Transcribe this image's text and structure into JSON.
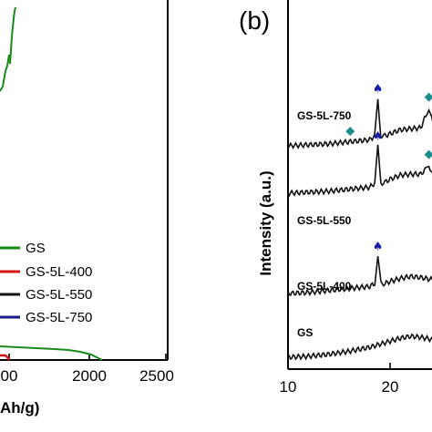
{
  "chart_data": [
    {
      "type": "line",
      "xlabel_fragment": "Ah/g)",
      "x_ticks": [
        "00",
        "2000",
        "2500"
      ],
      "x_visible_range": [
        1600,
        2500
      ],
      "legend": [
        "GS",
        "GS-5L-400",
        "GS-5L-550",
        "GS-5L-750"
      ],
      "colors": {
        "GS": "#1a8a1a",
        "GS-5L-400": "#d41414",
        "GS-5L-550": "#111111",
        "GS-5L-750": "#1a1a8c"
      },
      "series": [
        {
          "name": "GS",
          "points": [
            [
              1600,
              1.5
            ],
            [
              1750,
              1.4
            ],
            [
              1900,
              1.1
            ],
            [
              2000,
              0.7
            ],
            [
              2100,
              0.2
            ]
          ]
        },
        {
          "name": "GS-5L-400",
          "points": [
            [
              1600,
              0.12
            ],
            [
              1620,
              0.1
            ]
          ]
        }
      ]
    },
    {
      "type": "line",
      "panel_label": "(b)",
      "ylabel": "Intensity (a.u.)",
      "x_ticks": [
        "10",
        "20"
      ],
      "xlim": [
        10,
        26
      ],
      "series": [
        {
          "name": "GS",
          "offset": 0,
          "x": [
            10,
            12,
            14,
            16,
            18,
            19,
            20,
            21,
            22,
            23,
            24,
            25,
            26
          ],
          "y": [
            0.0,
            0.05,
            0.15,
            0.3,
            0.5,
            0.65,
            0.8,
            0.95,
            1.05,
            1.0,
            0.9,
            0.8,
            0.75
          ]
        },
        {
          "name": "GS-5L-400",
          "offset": 1,
          "x": [
            10,
            12,
            14,
            16,
            18,
            18.5,
            18.8,
            19.1,
            19.5,
            20,
            21,
            22,
            23,
            24,
            25,
            26
          ],
          "y": [
            0.0,
            0.05,
            0.15,
            0.25,
            0.35,
            0.5,
            1.8,
            0.5,
            0.5,
            0.6,
            0.75,
            0.85,
            0.8,
            0.7,
            0.65,
            0.6
          ]
        },
        {
          "name": "GS-5L-550",
          "offset": 2,
          "x": [
            10,
            12,
            14,
            16,
            18,
            18.5,
            18.8,
            19.1,
            19.5,
            20,
            21,
            22,
            23,
            23.5,
            23.8,
            24.2,
            24.7,
            25,
            25.3,
            26
          ],
          "y": [
            0.0,
            0.05,
            0.1,
            0.2,
            0.3,
            0.5,
            2.3,
            0.5,
            0.55,
            0.7,
            0.9,
            0.95,
            0.95,
            1.2,
            1.4,
            0.9,
            2.1,
            1.5,
            0.9,
            0.7
          ]
        },
        {
          "name": "GS-5L-750",
          "offset": 3,
          "x": [
            10,
            12,
            14,
            16,
            18,
            18.5,
            18.8,
            19.1,
            19.5,
            20,
            21,
            22,
            23,
            23.5,
            23.8,
            24.2,
            24.7,
            25,
            25.3,
            26
          ],
          "y": [
            0.0,
            0.05,
            0.1,
            0.2,
            0.3,
            0.5,
            2.3,
            0.5,
            0.5,
            0.6,
            0.8,
            0.85,
            0.9,
            1.5,
            1.9,
            1.1,
            2.4,
            1.6,
            0.8,
            0.6
          ]
        }
      ],
      "markers": [
        {
          "symbol": "♠",
          "color": "#1a1aa8",
          "x": 18.8,
          "series": "GS-5L-750"
        },
        {
          "symbol": "♠",
          "color": "#1a1aa8",
          "x": 18.8,
          "series": "GS-5L-550"
        },
        {
          "symbol": "♠",
          "color": "#1a1aa8",
          "x": 18.8,
          "series": "GS-5L-400"
        },
        {
          "symbol": "◆",
          "color": "#1a8c8c",
          "x": 16.1,
          "series": "GS-5L-750"
        },
        {
          "symbol": "◆",
          "color": "#1a8c8c",
          "x": 23.8,
          "series": "GS-5L-750"
        },
        {
          "symbol": "◆",
          "color": "#1a8c8c",
          "x": 24.7,
          "series": "GS-5L-750"
        },
        {
          "symbol": "◆",
          "color": "#1a8c8c",
          "x": 23.8,
          "series": "GS-5L-550"
        },
        {
          "symbol": "◆",
          "color": "#1a8c8c",
          "x": 24.7,
          "series": "GS-5L-550"
        }
      ]
    }
  ]
}
